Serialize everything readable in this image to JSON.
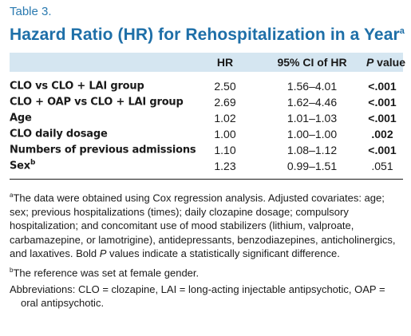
{
  "table": {
    "label": "Table 3.",
    "title": "Hazard Ratio (HR) for Rehospitalization in a Year",
    "title_footnote_mark": "a",
    "columns": {
      "label": "",
      "hr": "HR",
      "ci": "95% CI of HR",
      "p_italic": "P",
      "p_rest": " value"
    },
    "rows": [
      {
        "label": "CLO vs CLO + LAI group",
        "mark": "",
        "hr": "2.50",
        "ci": "1.56–4.01",
        "p": "<.001",
        "p_bold": true
      },
      {
        "label": "CLO + OAP vs CLO + LAI group",
        "mark": "",
        "hr": "2.69",
        "ci": "1.62–4.46",
        "p": "<.001",
        "p_bold": true
      },
      {
        "label": "Age",
        "mark": "",
        "hr": "1.02",
        "ci": "1.01–1.03",
        "p": "<.001",
        "p_bold": true
      },
      {
        "label": "CLO daily dosage",
        "mark": "",
        "hr": "1.00",
        "ci": "1.00–1.00",
        "p": ".002",
        "p_bold": true
      },
      {
        "label": "Numbers of previous admissions",
        "mark": "",
        "hr": "1.10",
        "ci": "1.08–1.12",
        "p": "<.001",
        "p_bold": true
      },
      {
        "label": "Sex",
        "mark": "b",
        "hr": "1.23",
        "ci": "0.99–1.51",
        "p": ".051",
        "p_bold": false
      }
    ],
    "notes": {
      "a_mark": "a",
      "a_part1": "The data were obtained using Cox regression analysis. Adjusted covariates: age; sex; previous hospitalizations (times); daily clozapine dosage; compulsory hospitalization; and concomitant use of mood stabilizers (lithium, valproate, carbamazepine, or lamotrigine), antidepressants, benzodiazepines, anticholinergics, and laxatives. Bold ",
      "a_italic": "P",
      "a_part2": " values indicate a statistically significant difference.",
      "b_mark": "b",
      "b_text": "The reference was set at female gender.",
      "abbreviations": "Abbreviations: CLO = clozapine, LAI = long-acting injectable antipsychotic, OAP = oral antipsychotic."
    }
  },
  "colors": {
    "title": "#1e6fa8",
    "label": "#2a7ab0",
    "header_band": "#d5e6f1"
  }
}
